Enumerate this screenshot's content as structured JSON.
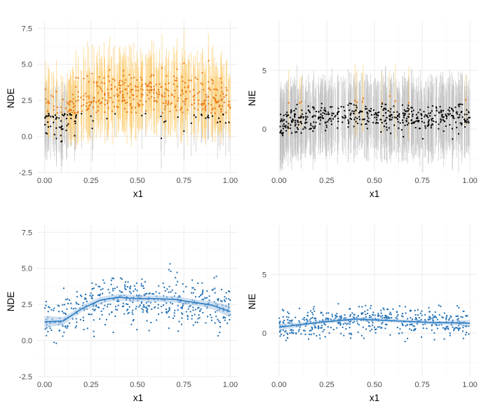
{
  "colors": {
    "ci_gray": "#bdbdbd",
    "ci_orange": "#fdd07a",
    "point_black": "#000000",
    "point_orange": "#e8760f",
    "point_blue": "#1f6fb4",
    "smooth_line": "#2a7cc4",
    "smooth_band": "#a9c6e6",
    "grid": "#ebebeb"
  },
  "chart_data": [
    {
      "type": "scatter",
      "panel": "top-left",
      "style": "points-with-interval-lines",
      "xlabel": "x1",
      "ylabel": "NDE",
      "xlim": [
        -0.04,
        1.04
      ],
      "ylim": [
        -2.5,
        8.0
      ],
      "xticks": [
        "0.00",
        "0.25",
        "0.50",
        "0.75",
        "1.00"
      ],
      "yticks": [
        "-2.5",
        "0.0",
        "2.5",
        "5.0",
        "7.5"
      ],
      "grid": true,
      "trend": [
        [
          0.0,
          1.3
        ],
        [
          0.1,
          1.35
        ],
        [
          0.2,
          2.2
        ],
        [
          0.3,
          2.8
        ],
        [
          0.4,
          3.0
        ],
        [
          0.5,
          2.9
        ],
        [
          0.6,
          2.9
        ],
        [
          0.7,
          2.85
        ],
        [
          0.8,
          2.65
        ],
        [
          0.9,
          2.45
        ],
        [
          1.0,
          2.0
        ]
      ],
      "n_points": 500,
      "noise_sd": 0.8,
      "ci_halfwidth": 2.0,
      "significance_threshold": 1.6,
      "seed": 11
    },
    {
      "type": "scatter",
      "panel": "top-right",
      "style": "points-with-interval-lines",
      "xlabel": "x1",
      "ylabel": "NIE",
      "xlim": [
        -0.04,
        1.04
      ],
      "ylim": [
        -3.7,
        9.2
      ],
      "xticks": [
        "0.00",
        "0.25",
        "0.50",
        "0.75",
        "1.00"
      ],
      "yticks": [
        "0",
        "5"
      ],
      "grid": true,
      "trend": [
        [
          0.0,
          0.5
        ],
        [
          0.2,
          0.9
        ],
        [
          0.4,
          1.2
        ],
        [
          0.6,
          1.05
        ],
        [
          0.8,
          0.9
        ],
        [
          1.0,
          0.85
        ]
      ],
      "n_points": 500,
      "noise_sd": 0.6,
      "ci_halfwidth": 2.7,
      "significance_threshold": 2.2,
      "seed": 23
    },
    {
      "type": "scatter",
      "panel": "bottom-left",
      "style": "points-with-smooth",
      "xlabel": "x1",
      "ylabel": "NDE",
      "xlim": [
        -0.04,
        1.04
      ],
      "ylim": [
        -2.5,
        8.0
      ],
      "xticks": [
        "0.00",
        "0.25",
        "0.50",
        "0.75",
        "1.00"
      ],
      "yticks": [
        "-2.5",
        "0.0",
        "2.5",
        "5.0",
        "7.5"
      ],
      "grid": true,
      "trend": [
        [
          0.0,
          1.3
        ],
        [
          0.1,
          1.35
        ],
        [
          0.2,
          2.2
        ],
        [
          0.3,
          2.8
        ],
        [
          0.4,
          3.0
        ],
        [
          0.5,
          2.9
        ],
        [
          0.6,
          2.9
        ],
        [
          0.7,
          2.85
        ],
        [
          0.8,
          2.65
        ],
        [
          0.9,
          2.45
        ],
        [
          1.0,
          2.0
        ]
      ],
      "n_points": 500,
      "noise_sd": 0.8,
      "band_halfwidth": 0.22,
      "seed": 37
    },
    {
      "type": "scatter",
      "panel": "bottom-right",
      "style": "points-with-smooth",
      "xlabel": "x1",
      "ylabel": "NIE",
      "xlim": [
        -0.04,
        1.04
      ],
      "ylim": [
        -3.7,
        9.2
      ],
      "xticks": [
        "0.00",
        "0.25",
        "0.50",
        "0.75",
        "1.00"
      ],
      "yticks": [
        "0",
        "5"
      ],
      "grid": true,
      "trend": [
        [
          0.0,
          0.5
        ],
        [
          0.2,
          0.9
        ],
        [
          0.4,
          1.2
        ],
        [
          0.6,
          1.05
        ],
        [
          0.8,
          0.9
        ],
        [
          1.0,
          0.85
        ]
      ],
      "n_points": 500,
      "noise_sd": 0.6,
      "band_halfwidth": 0.15,
      "seed": 53
    }
  ]
}
